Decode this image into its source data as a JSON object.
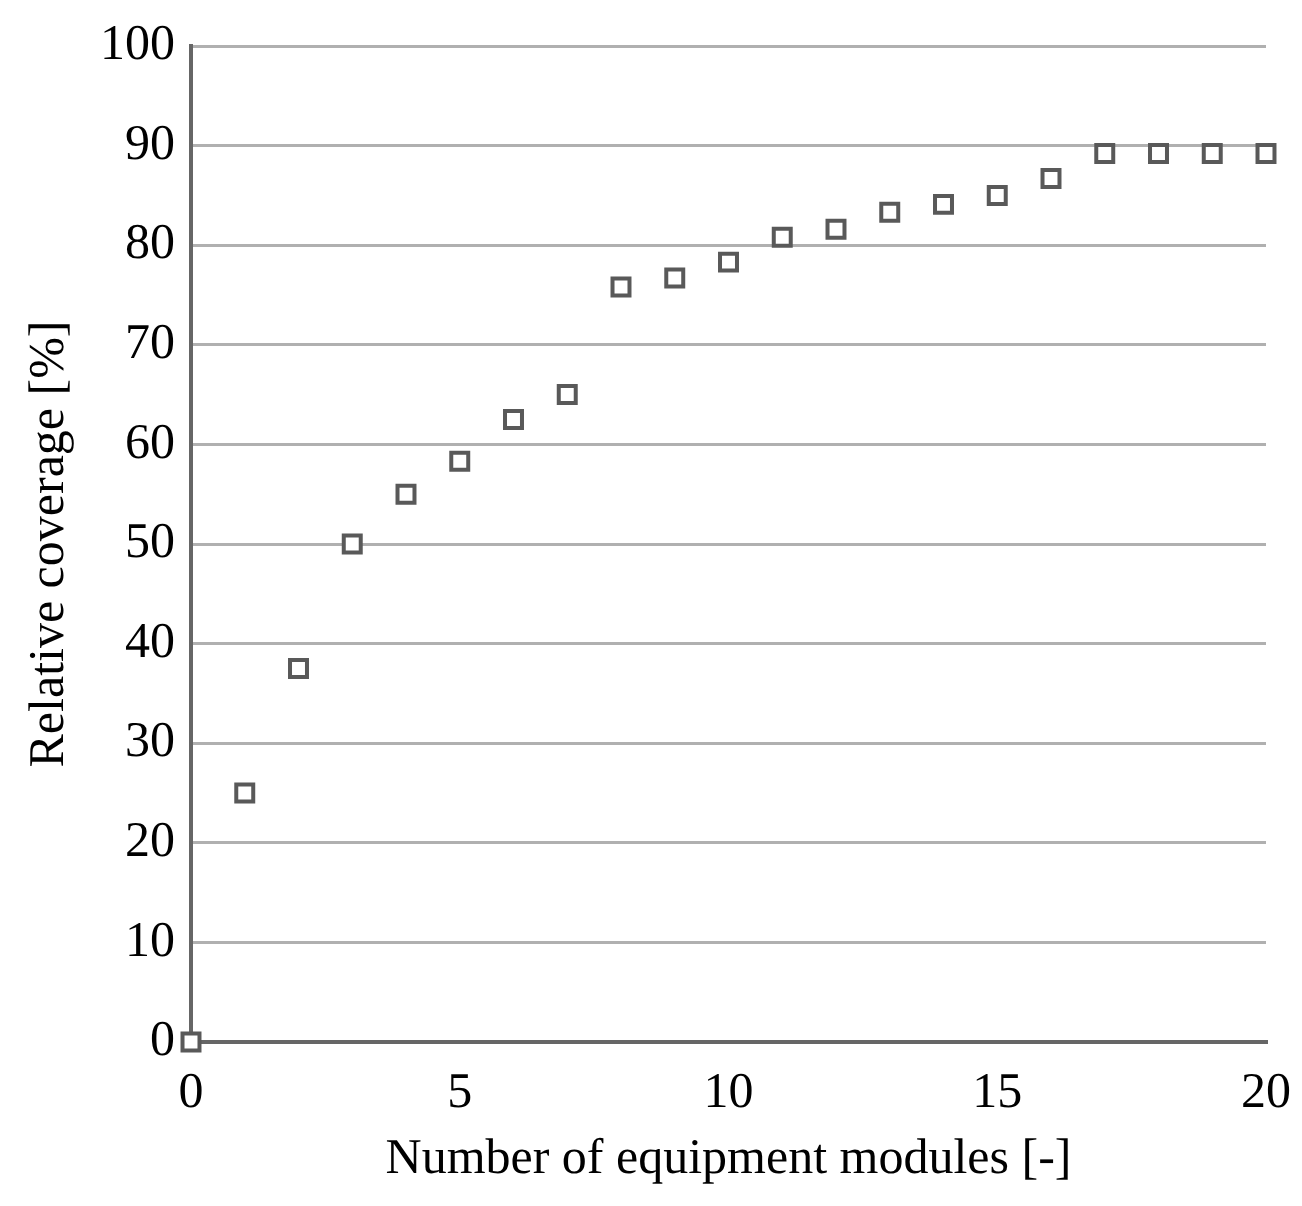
{
  "chart_data": {
    "type": "scatter",
    "xlabel": "Number of equipment modules [-]",
    "ylabel": "Relative coverage [%]",
    "x": [
      0,
      1,
      2,
      3,
      4,
      5,
      6,
      7,
      8,
      9,
      10,
      11,
      12,
      13,
      14,
      15,
      16,
      17,
      18,
      19,
      20
    ],
    "series": [
      {
        "color": "#595959",
        "values": [
          0,
          25,
          37.5,
          50,
          55,
          58.3,
          62.5,
          65,
          75.8,
          76.7,
          78.3,
          80.8,
          81.6,
          83.3,
          84.1,
          85,
          86.7,
          89.2,
          89.2,
          89.2,
          89.2
        ]
      }
    ],
    "xlim": [
      0,
      20
    ],
    "xticks": [
      0,
      5,
      10,
      15,
      20
    ],
    "ylim": [
      0,
      100
    ],
    "yticks": [
      0,
      10,
      20,
      30,
      40,
      50,
      60,
      70,
      80,
      90,
      100
    ],
    "grid": "y",
    "marker": "square",
    "legend": false
  }
}
